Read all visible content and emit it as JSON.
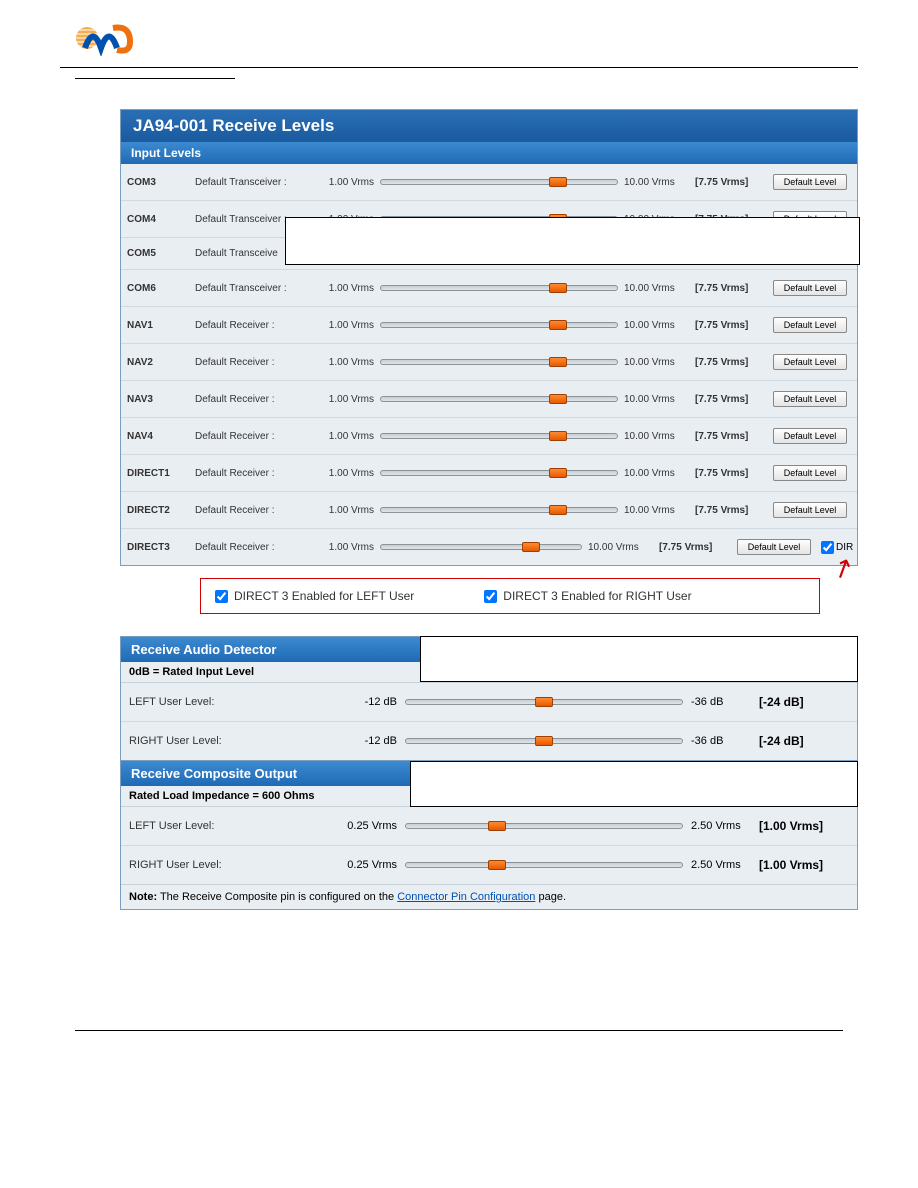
{
  "colors": {
    "header_grad_top": "#2a6fb5",
    "header_grad_bot": "#1a5a9e",
    "sub_grad_top": "#3c8ad0",
    "sub_grad_bot": "#1f6ab5",
    "body_bg": "#e9eef3",
    "thumb": "#ff8a30",
    "callout_border": "#d00000"
  },
  "main": {
    "title": "JA94-001 Receive Levels",
    "subtitle": "Input Levels",
    "rows": [
      {
        "name": "COM3",
        "type": "Default Transceiver :",
        "min": "1.00 Vrms",
        "max": "10.00 Vrms",
        "val": "[7.75 Vrms]",
        "btn": "Default Level",
        "pos": 75
      },
      {
        "name": "COM4",
        "type": "Default Transceiver :",
        "min": "1.00 Vrms",
        "max": "10.00 Vrms",
        "val": "[7.75 Vrms]",
        "btn": "Default Level",
        "pos": 75
      },
      {
        "name": "COM5",
        "type": "Default Transceive",
        "min": "",
        "max": "",
        "val": "",
        "btn": "",
        "pos": null
      },
      {
        "name": "COM6",
        "type": "Default Transceiver :",
        "min": "1.00 Vrms",
        "max": "10.00 Vrms",
        "val": "[7.75 Vrms]",
        "btn": "Default Level",
        "pos": 75
      },
      {
        "name": "NAV1",
        "type": "Default Receiver :",
        "min": "1.00 Vrms",
        "max": "10.00 Vrms",
        "val": "[7.75 Vrms]",
        "btn": "Default Level",
        "pos": 75
      },
      {
        "name": "NAV2",
        "type": "Default Receiver :",
        "min": "1.00 Vrms",
        "max": "10.00 Vrms",
        "val": "[7.75 Vrms]",
        "btn": "Default Level",
        "pos": 75
      },
      {
        "name": "NAV3",
        "type": "Default Receiver :",
        "min": "1.00 Vrms",
        "max": "10.00 Vrms",
        "val": "[7.75 Vrms]",
        "btn": "Default Level",
        "pos": 75
      },
      {
        "name": "NAV4",
        "type": "Default Receiver :",
        "min": "1.00 Vrms",
        "max": "10.00 Vrms",
        "val": "[7.75 Vrms]",
        "btn": "Default Level",
        "pos": 75
      },
      {
        "name": "DIRECT1",
        "type": "Default Receiver :",
        "min": "1.00 Vrms",
        "max": "10.00 Vrms",
        "val": "[7.75 Vrms]",
        "btn": "Default Level",
        "pos": 75
      },
      {
        "name": "DIRECT2",
        "type": "Default Receiver :",
        "min": "1.00 Vrms",
        "max": "10.00 Vrms",
        "val": "[7.75 Vrms]",
        "btn": "Default Level",
        "pos": 75
      },
      {
        "name": "DIRECT3",
        "type": "Default Receiver :",
        "min": "1.00 Vrms",
        "max": "10.00 Vrms",
        "val": "[7.75 Vrms]",
        "btn": "Default Level",
        "pos": 75,
        "extra_chk": true,
        "extra_lbl": "DIR"
      }
    ]
  },
  "callout": {
    "left": "DIRECT 3 Enabled for LEFT User",
    "right": "DIRECT 3 Enabled for RIGHT User"
  },
  "detector": {
    "title": "Receive Audio Detector",
    "info": "0dB = Rated Input Level",
    "rows": [
      {
        "label": "LEFT User Level:",
        "min": "-12 dB",
        "max": "-36 dB",
        "val": "[-24 dB]",
        "pos": 50
      },
      {
        "label": "RIGHT User Level:",
        "min": "-12 dB",
        "max": "-36 dB",
        "val": "[-24 dB]",
        "pos": 50
      }
    ]
  },
  "composite": {
    "title": "Receive Composite Output",
    "info": "Rated Load Impedance = 600 Ohms",
    "rows": [
      {
        "label": "LEFT User Level:",
        "min": "0.25 Vrms",
        "max": "2.50 Vrms",
        "val": "[1.00 Vrms]",
        "pos": 33
      },
      {
        "label": "RIGHT User Level:",
        "min": "0.25 Vrms",
        "max": "2.50 Vrms",
        "val": "[1.00 Vrms]",
        "pos": 33
      }
    ],
    "note_pre": "Note:",
    "note_txt": " The Receive Composite pin is configured on the ",
    "note_link": "Connector Pin Configuration",
    "note_post": " page."
  }
}
